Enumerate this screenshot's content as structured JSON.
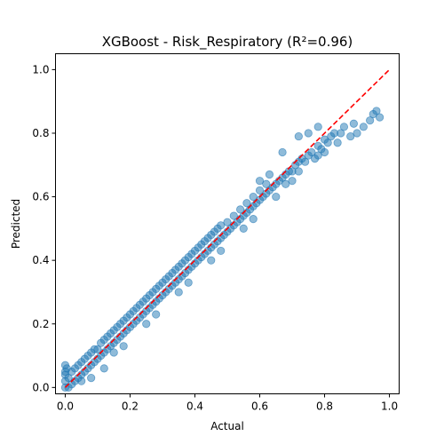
{
  "chart_data": {
    "type": "scatter",
    "title": "XGBoost - Risk_Respiratory (R²=0.96)",
    "xlabel": "Actual",
    "ylabel": "Predicted",
    "xlim": [
      -0.03,
      1.03
    ],
    "ylim": [
      -0.02,
      1.05
    ],
    "x_ticks": [
      0.0,
      0.2,
      0.4,
      0.6,
      0.8,
      1.0
    ],
    "y_ticks": [
      0.0,
      0.2,
      0.4,
      0.6,
      0.8,
      1.0
    ],
    "grid": false,
    "point_color": "#1f77b4",
    "reference_line_color": "#ff0000",
    "reference_line": {
      "x": [
        0.0,
        1.0
      ],
      "y": [
        0.0,
        1.0
      ],
      "style": "dashed"
    },
    "series": [
      {
        "values": [
          [
            0.0,
            0.0
          ],
          [
            0.0,
            0.02
          ],
          [
            0.0,
            0.04
          ],
          [
            0.0,
            0.05
          ],
          [
            0.005,
            0.06
          ],
          [
            0.01,
            0.0
          ],
          [
            0.01,
            0.03
          ],
          [
            0.02,
            0.01
          ],
          [
            0.02,
            0.05
          ],
          [
            0.03,
            0.02
          ],
          [
            0.03,
            0.06
          ],
          [
            0.04,
            0.03
          ],
          [
            0.04,
            0.07
          ],
          [
            0.05,
            0.04
          ],
          [
            0.05,
            0.08
          ],
          [
            0.06,
            0.05
          ],
          [
            0.06,
            0.09
          ],
          [
            0.07,
            0.06
          ],
          [
            0.07,
            0.1
          ],
          [
            0.08,
            0.07
          ],
          [
            0.08,
            0.11
          ],
          [
            0.09,
            0.08
          ],
          [
            0.09,
            0.12
          ],
          [
            0.1,
            0.09
          ],
          [
            0.1,
            0.12
          ],
          [
            0.11,
            0.1
          ],
          [
            0.11,
            0.14
          ],
          [
            0.12,
            0.11
          ],
          [
            0.12,
            0.15
          ],
          [
            0.13,
            0.12
          ],
          [
            0.13,
            0.16
          ],
          [
            0.14,
            0.13
          ],
          [
            0.14,
            0.17
          ],
          [
            0.15,
            0.14
          ],
          [
            0.15,
            0.18
          ],
          [
            0.16,
            0.15
          ],
          [
            0.16,
            0.19
          ],
          [
            0.17,
            0.16
          ],
          [
            0.17,
            0.2
          ],
          [
            0.18,
            0.17
          ],
          [
            0.18,
            0.21
          ],
          [
            0.19,
            0.18
          ],
          [
            0.19,
            0.22
          ],
          [
            0.2,
            0.19
          ],
          [
            0.2,
            0.23
          ],
          [
            0.21,
            0.2
          ],
          [
            0.21,
            0.24
          ],
          [
            0.22,
            0.21
          ],
          [
            0.22,
            0.25
          ],
          [
            0.23,
            0.22
          ],
          [
            0.23,
            0.26
          ],
          [
            0.24,
            0.23
          ],
          [
            0.24,
            0.27
          ],
          [
            0.25,
            0.24
          ],
          [
            0.25,
            0.28
          ],
          [
            0.26,
            0.25
          ],
          [
            0.26,
            0.29
          ],
          [
            0.27,
            0.26
          ],
          [
            0.27,
            0.3
          ],
          [
            0.28,
            0.27
          ],
          [
            0.28,
            0.31
          ],
          [
            0.29,
            0.28
          ],
          [
            0.29,
            0.32
          ],
          [
            0.3,
            0.29
          ],
          [
            0.3,
            0.33
          ],
          [
            0.31,
            0.3
          ],
          [
            0.31,
            0.34
          ],
          [
            0.32,
            0.31
          ],
          [
            0.32,
            0.35
          ],
          [
            0.33,
            0.32
          ],
          [
            0.33,
            0.36
          ],
          [
            0.34,
            0.33
          ],
          [
            0.34,
            0.37
          ],
          [
            0.35,
            0.34
          ],
          [
            0.35,
            0.38
          ],
          [
            0.36,
            0.35
          ],
          [
            0.36,
            0.39
          ],
          [
            0.37,
            0.36
          ],
          [
            0.37,
            0.4
          ],
          [
            0.38,
            0.37
          ],
          [
            0.38,
            0.41
          ],
          [
            0.39,
            0.38
          ],
          [
            0.39,
            0.42
          ],
          [
            0.4,
            0.39
          ],
          [
            0.4,
            0.43
          ],
          [
            0.41,
            0.4
          ],
          [
            0.41,
            0.44
          ],
          [
            0.42,
            0.41
          ],
          [
            0.42,
            0.45
          ],
          [
            0.43,
            0.42
          ],
          [
            0.43,
            0.46
          ],
          [
            0.44,
            0.43
          ],
          [
            0.44,
            0.47
          ],
          [
            0.45,
            0.44
          ],
          [
            0.45,
            0.48
          ],
          [
            0.46,
            0.45
          ],
          [
            0.46,
            0.49
          ],
          [
            0.47,
            0.46
          ],
          [
            0.47,
            0.5
          ],
          [
            0.48,
            0.47
          ],
          [
            0.48,
            0.51
          ],
          [
            0.49,
            0.48
          ],
          [
            0.5,
            0.49
          ],
          [
            0.5,
            0.52
          ],
          [
            0.51,
            0.5
          ],
          [
            0.52,
            0.51
          ],
          [
            0.52,
            0.54
          ],
          [
            0.53,
            0.52
          ],
          [
            0.54,
            0.53
          ],
          [
            0.54,
            0.56
          ],
          [
            0.55,
            0.54
          ],
          [
            0.56,
            0.55
          ],
          [
            0.56,
            0.58
          ],
          [
            0.57,
            0.56
          ],
          [
            0.58,
            0.57
          ],
          [
            0.58,
            0.6
          ],
          [
            0.59,
            0.58
          ],
          [
            0.6,
            0.59
          ],
          [
            0.6,
            0.62
          ],
          [
            0.61,
            0.6
          ],
          [
            0.62,
            0.61
          ],
          [
            0.62,
            0.64
          ],
          [
            0.63,
            0.62
          ],
          [
            0.64,
            0.63
          ],
          [
            0.65,
            0.64
          ],
          [
            0.66,
            0.65
          ],
          [
            0.67,
            0.66
          ],
          [
            0.68,
            0.67
          ],
          [
            0.68,
            0.64
          ],
          [
            0.69,
            0.68
          ],
          [
            0.7,
            0.68
          ],
          [
            0.71,
            0.7
          ],
          [
            0.72,
            0.71
          ],
          [
            0.72,
            0.68
          ],
          [
            0.73,
            0.72
          ],
          [
            0.74,
            0.71
          ],
          [
            0.75,
            0.73
          ],
          [
            0.76,
            0.74
          ],
          [
            0.77,
            0.72
          ],
          [
            0.78,
            0.76
          ],
          [
            0.78,
            0.73
          ],
          [
            0.79,
            0.75
          ],
          [
            0.8,
            0.78
          ],
          [
            0.8,
            0.74
          ],
          [
            0.81,
            0.77
          ],
          [
            0.82,
            0.79
          ],
          [
            0.83,
            0.8
          ],
          [
            0.84,
            0.77
          ],
          [
            0.85,
            0.8
          ],
          [
            0.86,
            0.82
          ],
          [
            0.88,
            0.79
          ],
          [
            0.89,
            0.83
          ],
          [
            0.9,
            0.8
          ],
          [
            0.92,
            0.82
          ],
          [
            0.94,
            0.84
          ],
          [
            0.95,
            0.86
          ],
          [
            0.96,
            0.87
          ],
          [
            0.97,
            0.85
          ],
          [
            0.67,
            0.74
          ],
          [
            0.72,
            0.79
          ],
          [
            0.75,
            0.8
          ],
          [
            0.63,
            0.67
          ],
          [
            0.6,
            0.65
          ],
          [
            0.78,
            0.82
          ],
          [
            0.25,
            0.2
          ],
          [
            0.35,
            0.3
          ],
          [
            0.45,
            0.4
          ],
          [
            0.55,
            0.5
          ],
          [
            0.15,
            0.11
          ],
          [
            0.05,
            0.02
          ],
          [
            0.08,
            0.03
          ],
          [
            0.12,
            0.06
          ],
          [
            0.18,
            0.13
          ],
          [
            0.28,
            0.23
          ],
          [
            0.38,
            0.33
          ],
          [
            0.48,
            0.43
          ],
          [
            0.58,
            0.53
          ],
          [
            0.65,
            0.6
          ],
          [
            0.7,
            0.65
          ],
          [
            0.0,
            0.07
          ]
        ]
      }
    ]
  }
}
